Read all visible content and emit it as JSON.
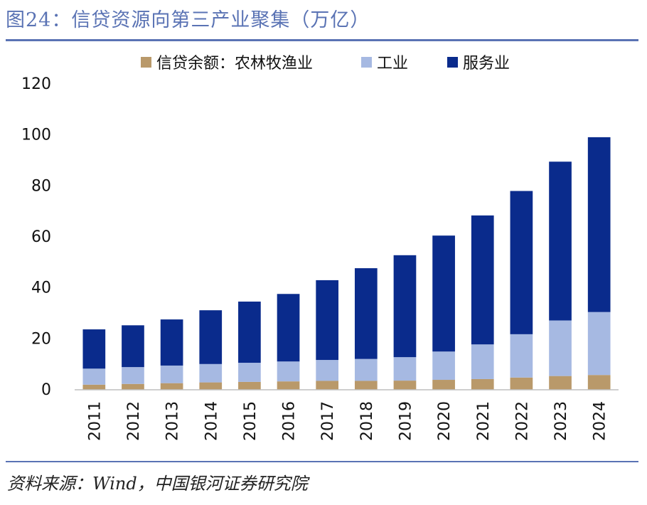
{
  "header": {
    "title": "图24：信贷资源向第三产业聚集（万亿）"
  },
  "footer": {
    "source": "资料来源：Wind，中国银河证券研究院"
  },
  "chart_data": {
    "type": "bar",
    "stacked": true,
    "title": "图24：信贷资源向第三产业聚集（万亿）",
    "categories": [
      "2011",
      "2012",
      "2013",
      "2014",
      "2015",
      "2016",
      "2017",
      "2018",
      "2019",
      "2020",
      "2021",
      "2022",
      "2023",
      "2024"
    ],
    "series": [
      {
        "name": "信贷余额：农林牧渔业",
        "color": "#b9996a",
        "values": [
          2.0,
          2.3,
          2.6,
          2.9,
          3.1,
          3.3,
          3.5,
          3.5,
          3.6,
          3.9,
          4.2,
          4.8,
          5.4,
          5.8
        ]
      },
      {
        "name": "工业",
        "color": "#a6b9e2",
        "values": [
          6.3,
          6.6,
          6.9,
          7.2,
          7.5,
          7.8,
          8.2,
          8.6,
          9.2,
          11.1,
          13.6,
          17.0,
          21.8,
          24.7
        ]
      },
      {
        "name": "服务业",
        "color": "#0a2b8c",
        "values": [
          15.4,
          16.4,
          18.1,
          21.1,
          24.0,
          26.5,
          31.3,
          35.6,
          40.0,
          45.5,
          50.6,
          56.2,
          62.3,
          68.6
        ]
      }
    ],
    "ylim": [
      0,
      120
    ],
    "yticks": [
      0,
      20,
      40,
      60,
      80,
      100,
      120
    ],
    "grid": false,
    "legend": "top"
  }
}
